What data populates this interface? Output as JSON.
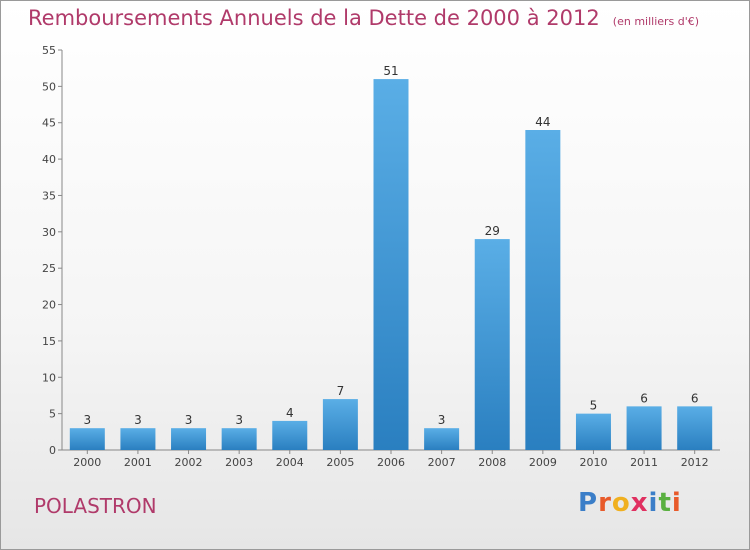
{
  "chart": {
    "title": "Remboursements Annuels de la Dette de 2000 à 2012",
    "unit": "(en milliers d'€)",
    "commune": "POLASTRON",
    "logo": "Proxiti",
    "colors": {
      "bar_top": "#5aaee6",
      "bar_bottom": "#2a7fc0",
      "title": "#b03a6a"
    }
  },
  "chart_data": {
    "type": "bar",
    "categories": [
      "2000",
      "2001",
      "2002",
      "2003",
      "2004",
      "2005",
      "2006",
      "2007",
      "2008",
      "2009",
      "2010",
      "2011",
      "2012"
    ],
    "values": [
      3,
      3,
      3,
      3,
      4,
      7,
      51,
      3,
      29,
      44,
      5,
      6,
      6
    ],
    "ylim": [
      0,
      55
    ],
    "yticks": [
      0,
      5,
      10,
      15,
      20,
      25,
      30,
      35,
      40,
      45,
      50,
      55
    ],
    "grid": false,
    "legend": "none"
  }
}
